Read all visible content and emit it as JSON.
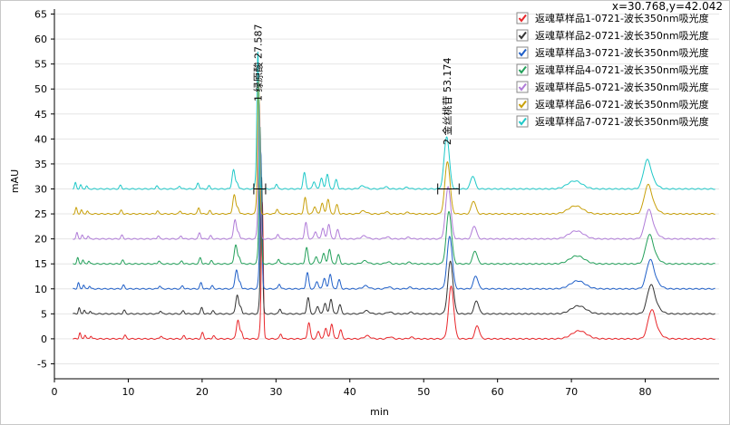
{
  "coord_readout": "x=30.768,y=42.042",
  "chart_data": {
    "type": "line",
    "title": "",
    "xlabel": "min",
    "ylabel": "mAU",
    "xlim": [
      0,
      90
    ],
    "ylim": [
      -8,
      66
    ],
    "x_ticks": [
      0,
      10,
      20,
      30,
      40,
      50,
      60,
      70,
      80
    ],
    "y_ticks": [
      -5,
      0,
      5,
      10,
      15,
      20,
      25,
      30,
      35,
      40,
      45,
      50,
      55,
      60,
      65
    ],
    "grid": "horizontal",
    "legend_position": "top-right",
    "stacked_offset": 5,
    "series": [
      {
        "name": "返魂草样品1-0721-波长350nm吸光度",
        "color": "#e8262a",
        "baseline": 0
      },
      {
        "name": "返魂草样品2-0721-波长350nm吸光度",
        "color": "#333333",
        "baseline": 5
      },
      {
        "name": "返魂草样品3-0721-波长350nm吸光度",
        "color": "#1f5fc8",
        "baseline": 10
      },
      {
        "name": "返魂草样品4-0721-波长350nm吸光度",
        "color": "#23a05a",
        "baseline": 15
      },
      {
        "name": "返魂草样品5-0721-波长350nm吸光度",
        "color": "#b07cd8",
        "baseline": 20
      },
      {
        "name": "返魂草样品6-0721-波长350nm吸光度",
        "color": "#c8a00a",
        "baseline": 25
      },
      {
        "name": "返魂草样品7-0721-波长350nm吸光度",
        "color": "#1fc8c8",
        "baseline": 30
      }
    ],
    "peaks_profile": [
      {
        "rt": 2.9,
        "h": 1.2,
        "w": 0.12
      },
      {
        "rt": 3.6,
        "h": 0.8,
        "w": 0.12
      },
      {
        "rt": 4.4,
        "h": 0.6,
        "w": 0.12
      },
      {
        "rt": 9.0,
        "h": 0.7,
        "w": 0.15
      },
      {
        "rt": 13.9,
        "h": 0.6,
        "w": 0.15
      },
      {
        "rt": 17.0,
        "h": 0.6,
        "w": 0.15
      },
      {
        "rt": 19.5,
        "h": 1.2,
        "w": 0.15
      },
      {
        "rt": 21.0,
        "h": 0.6,
        "w": 0.15
      },
      {
        "rt": 24.3,
        "h": 3.8,
        "w": 0.2
      },
      {
        "rt": 24.8,
        "h": 1.2,
        "w": 0.15
      },
      {
        "rt": 27.3,
        "h": 1.5,
        "w": 0.12
      },
      {
        "rt": 27.6,
        "h": 27.5,
        "w": 0.13
      },
      {
        "rt": 30.1,
        "h": 1.0,
        "w": 0.15
      },
      {
        "rt": 33.9,
        "h": 3.2,
        "w": 0.18
      },
      {
        "rt": 35.2,
        "h": 1.5,
        "w": 0.18
      },
      {
        "rt": 36.2,
        "h": 2.2,
        "w": 0.18
      },
      {
        "rt": 37.0,
        "h": 3.0,
        "w": 0.18
      },
      {
        "rt": 38.2,
        "h": 1.8,
        "w": 0.18
      },
      {
        "rt": 41.8,
        "h": 0.6,
        "w": 0.4
      },
      {
        "rt": 44.9,
        "h": 0.4,
        "w": 0.3
      },
      {
        "rt": 47.8,
        "h": 0.3,
        "w": 0.3
      },
      {
        "rt": 53.17,
        "h": 10.5,
        "w": 0.35
      },
      {
        "rt": 56.7,
        "h": 2.6,
        "w": 0.3
      },
      {
        "rt": 70.5,
        "h": 1.6,
        "w": 1.0
      },
      {
        "rt": 80.3,
        "h": 5.5,
        "w": 0.5
      },
      {
        "rt": 81.2,
        "h": 1.0,
        "w": 0.6
      }
    ],
    "series_shift_min": [
      0.55,
      0.45,
      0.35,
      0.25,
      0.15,
      0.05,
      -0.05
    ],
    "peak_annotations": [
      {
        "text": "1 绿原酸 27.587",
        "x": 27.587
      },
      {
        "text": "2 金丝桃苷 53.174",
        "x": 53.174
      }
    ]
  }
}
